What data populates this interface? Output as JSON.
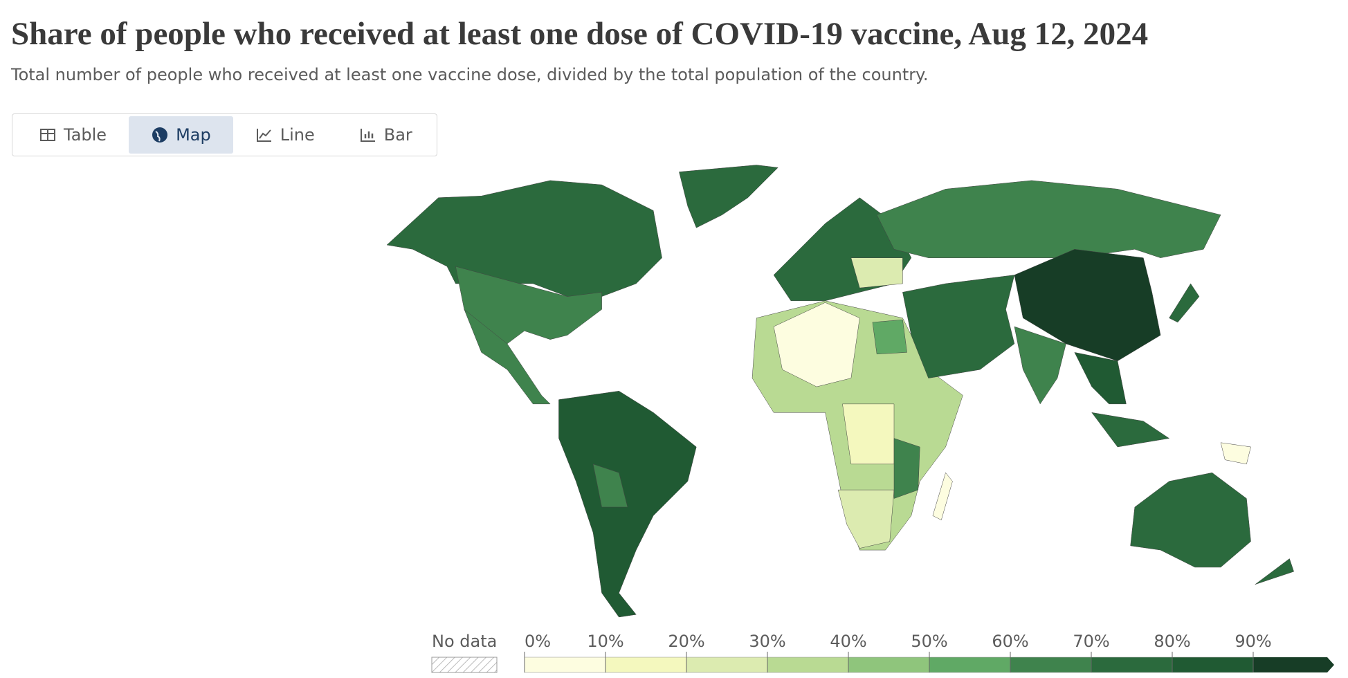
{
  "header": {
    "title": "Share of people who received at least one dose of COVID-19 vaccine, Aug 12, 2024",
    "subtitle": "Total number of people who received at least one vaccine dose, divided by the total population of the country."
  },
  "tabs": [
    {
      "label": "Table",
      "active": false
    },
    {
      "label": "Map",
      "active": true
    },
    {
      "label": "Line",
      "active": false
    },
    {
      "label": "Bar",
      "active": false
    }
  ],
  "legend": {
    "no_data": "No data",
    "ticks": [
      {
        "value": 0,
        "label": "0%"
      },
      {
        "value": 10,
        "label": "10%"
      },
      {
        "value": 20,
        "label": "20%"
      },
      {
        "value": 30,
        "label": "30%"
      },
      {
        "value": 40,
        "label": "40%"
      },
      {
        "value": 50,
        "label": "50%"
      },
      {
        "value": 60,
        "label": "60%"
      },
      {
        "value": 70,
        "label": "70%"
      },
      {
        "value": 80,
        "label": "80%"
      },
      {
        "value": 90,
        "label": "90%"
      }
    ],
    "colors": [
      "#fdfde0",
      "#f4f8be",
      "#dcebb0",
      "#b9da93",
      "#8fc57c",
      "#60a965",
      "#3f834d",
      "#2b6a3d",
      "#205a33",
      "#173d26"
    ]
  }
}
